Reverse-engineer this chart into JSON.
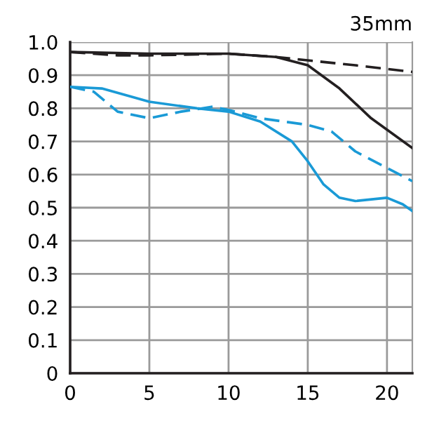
{
  "chart_data": {
    "type": "line",
    "title": "35mm",
    "xlim": [
      0,
      21.6
    ],
    "xticks": [
      0,
      5,
      10,
      15,
      20
    ],
    "ylim": [
      0,
      1.0
    ],
    "yticks": [
      0,
      {
        "value": 0.1,
        "label": "0.1"
      },
      {
        "value": 0.2,
        "label": "0.2"
      },
      {
        "value": 0.3,
        "label": "0.3"
      },
      {
        "value": 0.4,
        "label": "0.4"
      },
      {
        "value": 0.5,
        "label": "0.5"
      },
      {
        "value": 0.6,
        "label": "0.6"
      },
      {
        "value": 0.7,
        "label": "0.7"
      },
      {
        "value": 0.8,
        "label": "0.8"
      },
      {
        "value": 0.9,
        "label": "0.9"
      },
      {
        "value": 1.0,
        "label": "1.0"
      }
    ],
    "grid": true,
    "legend": false,
    "marker": "none",
    "series": [
      {
        "color": "#231f20",
        "line_style": "solid",
        "x": [
          0,
          5,
          10,
          13,
          15,
          17,
          19,
          21.6
        ],
        "values": [
          0.97,
          0.965,
          0.965,
          0.955,
          0.93,
          0.86,
          0.77,
          0.68
        ]
      },
      {
        "color": "#231f20",
        "line_style": "dashed",
        "x": [
          0,
          3,
          5,
          10,
          13,
          15,
          18,
          21.6
        ],
        "values": [
          0.97,
          0.96,
          0.96,
          0.965,
          0.955,
          0.945,
          0.93,
          0.91
        ]
      },
      {
        "color": "#1a9ad6",
        "line_style": "solid",
        "x": [
          0,
          2,
          5,
          8,
          10,
          12,
          14,
          15,
          16,
          17,
          18,
          20,
          21,
          21.6
        ],
        "values": [
          0.865,
          0.86,
          0.82,
          0.8,
          0.79,
          0.76,
          0.7,
          0.64,
          0.57,
          0.53,
          0.52,
          0.53,
          0.51,
          0.49
        ]
      },
      {
        "color": "#1a9ad6",
        "line_style": "dashed",
        "x": [
          0,
          1.5,
          3,
          5,
          7,
          9,
          10,
          12,
          15,
          16.5,
          18,
          20,
          21.6
        ],
        "values": [
          0.865,
          0.85,
          0.79,
          0.77,
          0.79,
          0.805,
          0.795,
          0.77,
          0.75,
          0.73,
          0.67,
          0.62,
          0.58
        ]
      }
    ]
  }
}
